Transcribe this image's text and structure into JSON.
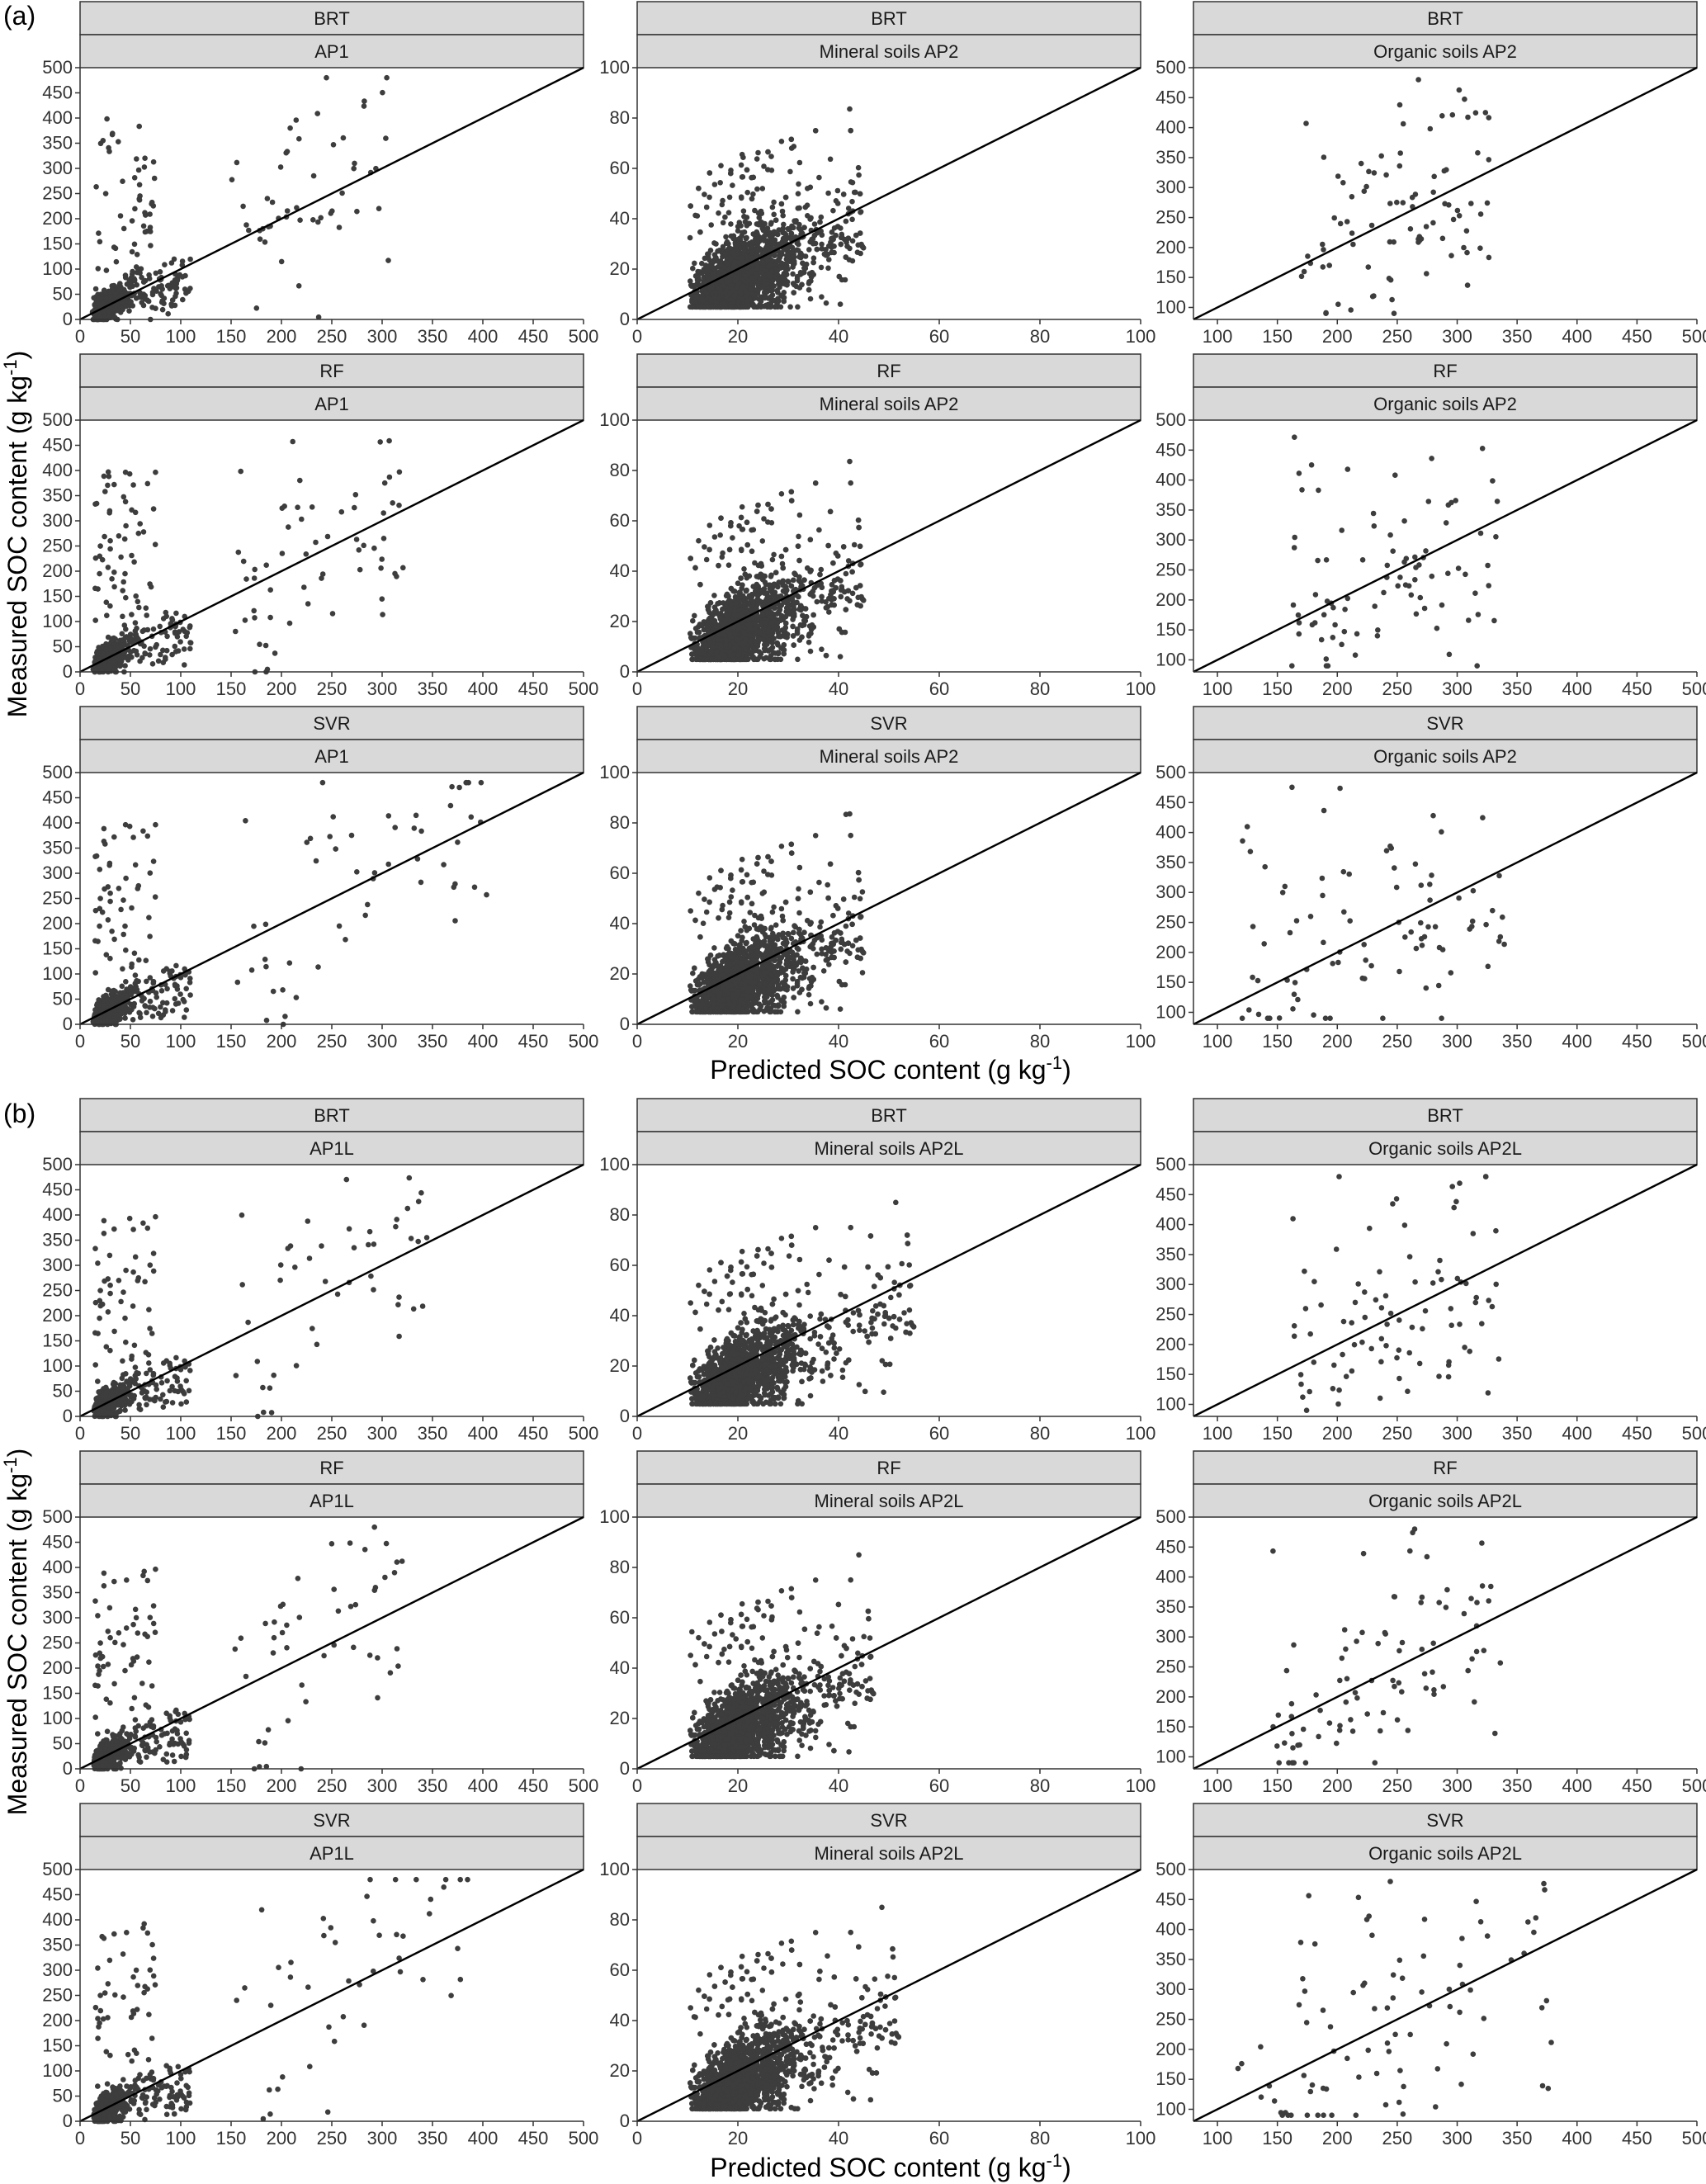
{
  "figure": {
    "x_title": "Predicted SOC content (g kg",
    "x_title_unit_exp": "-1",
    "x_title_close": ")",
    "y_title": "Measured SOC content (g kg",
    "y_title_unit_exp": "-1",
    "y_title_close": ")",
    "point_color": "#3d3d3d",
    "strip_color": "#d9d9d9"
  },
  "chart_data": [
    {
      "type": "scatter",
      "section": "(a)",
      "model": "BRT",
      "subset": "AP1",
      "xlim": [
        0,
        500
      ],
      "ylim": [
        0,
        500
      ],
      "xticks": [
        "0",
        "50",
        "100",
        "150",
        "200",
        "250",
        "300",
        "350",
        "400",
        "450",
        "500"
      ],
      "yticks": [
        "0",
        "50",
        "100",
        "150",
        "200",
        "250",
        "300",
        "350",
        "400",
        "450",
        "500"
      ],
      "reference_line": "1:1",
      "x_range_points": [
        12,
        310
      ],
      "y_range_points": [
        0,
        480
      ],
      "n_points_approx": 700
    },
    {
      "type": "scatter",
      "section": "(a)",
      "model": "BRT",
      "subset": "Mineral soils AP2",
      "xlim": [
        0,
        100
      ],
      "ylim": [
        0,
        100
      ],
      "xticks": [
        "0",
        "20",
        "40",
        "60",
        "80",
        "100"
      ],
      "yticks": [
        "0",
        "20",
        "40",
        "60",
        "80",
        "100"
      ],
      "reference_line": "1:1",
      "x_range_points": [
        8,
        45
      ],
      "y_range_points": [
        5,
        85
      ],
      "n_points_approx": 2500
    },
    {
      "type": "scatter",
      "section": "(a)",
      "model": "BRT",
      "subset": "Organic soils AP2",
      "xlim": [
        80,
        500
      ],
      "ylim": [
        80,
        500
      ],
      "xticks": [
        "100",
        "150",
        "200",
        "250",
        "300",
        "350",
        "400",
        "450",
        "500"
      ],
      "yticks": [
        "100",
        "150",
        "200",
        "250",
        "300",
        "350",
        "400",
        "450",
        "500"
      ],
      "reference_line": "1:1",
      "x_range_points": [
        170,
        330
      ],
      "y_range_points": [
        90,
        480
      ],
      "n_points_approx": 90
    },
    {
      "type": "scatter",
      "section": "(a)",
      "model": "RF",
      "subset": "AP1",
      "xlim": [
        0,
        500
      ],
      "ylim": [
        0,
        500
      ],
      "xticks": [
        "0",
        "50",
        "100",
        "150",
        "200",
        "250",
        "300",
        "350",
        "400",
        "450",
        "500"
      ],
      "yticks": [
        "0",
        "50",
        "100",
        "150",
        "200",
        "250",
        "300",
        "350",
        "400",
        "450",
        "500"
      ],
      "reference_line": "1:1",
      "x_range_points": [
        10,
        325
      ],
      "y_range_points": [
        0,
        480
      ],
      "n_points_approx": 700
    },
    {
      "type": "scatter",
      "section": "(a)",
      "model": "RF",
      "subset": "Mineral soils AP2",
      "xlim": [
        0,
        100
      ],
      "ylim": [
        0,
        100
      ],
      "xticks": [
        "0",
        "20",
        "40",
        "60",
        "80",
        "100"
      ],
      "yticks": [
        "0",
        "20",
        "40",
        "60",
        "80",
        "100"
      ],
      "reference_line": "1:1",
      "x_range_points": [
        8,
        45
      ],
      "y_range_points": [
        5,
        85
      ],
      "n_points_approx": 2500
    },
    {
      "type": "scatter",
      "section": "(a)",
      "model": "RF",
      "subset": "Organic soils AP2",
      "xlim": [
        80,
        500
      ],
      "ylim": [
        80,
        500
      ],
      "xticks": [
        "100",
        "150",
        "200",
        "250",
        "300",
        "350",
        "400",
        "450",
        "500"
      ],
      "yticks": [
        "100",
        "150",
        "200",
        "250",
        "300",
        "350",
        "400",
        "450",
        "500"
      ],
      "reference_line": "1:1",
      "x_range_points": [
        160,
        335
      ],
      "y_range_points": [
        90,
        480
      ],
      "n_points_approx": 90
    },
    {
      "type": "scatter",
      "section": "(a)",
      "model": "SVR",
      "subset": "AP1",
      "xlim": [
        0,
        500
      ],
      "ylim": [
        0,
        500
      ],
      "xticks": [
        "0",
        "50",
        "100",
        "150",
        "200",
        "250",
        "300",
        "350",
        "400",
        "450",
        "500"
      ],
      "yticks": [
        "0",
        "50",
        "100",
        "150",
        "200",
        "250",
        "300",
        "350",
        "400",
        "450",
        "500"
      ],
      "reference_line": "1:1",
      "x_range_points": [
        5,
        410
      ],
      "y_range_points": [
        0,
        480
      ],
      "n_points_approx": 700
    },
    {
      "type": "scatter",
      "section": "(a)",
      "model": "SVR",
      "subset": "Mineral soils AP2",
      "xlim": [
        0,
        100
      ],
      "ylim": [
        0,
        100
      ],
      "xticks": [
        "0",
        "20",
        "40",
        "60",
        "80",
        "100"
      ],
      "yticks": [
        "0",
        "20",
        "40",
        "60",
        "80",
        "100"
      ],
      "reference_line": "1:1",
      "x_range_points": [
        6,
        45
      ],
      "y_range_points": [
        5,
        85
      ],
      "n_points_approx": 2500
    },
    {
      "type": "scatter",
      "section": "(a)",
      "model": "SVR",
      "subset": "Organic soils AP2",
      "xlim": [
        80,
        500
      ],
      "ylim": [
        80,
        500
      ],
      "xticks": [
        "100",
        "150",
        "200",
        "250",
        "300",
        "350",
        "400",
        "450",
        "500"
      ],
      "yticks": [
        "100",
        "150",
        "200",
        "250",
        "300",
        "350",
        "400",
        "450",
        "500"
      ],
      "reference_line": "1:1",
      "x_range_points": [
        120,
        340
      ],
      "y_range_points": [
        90,
        480
      ],
      "n_points_approx": 90
    },
    {
      "type": "scatter",
      "section": "(b)",
      "model": "BRT",
      "subset": "AP1L",
      "xlim": [
        0,
        500
      ],
      "ylim": [
        0,
        500
      ],
      "xticks": [
        "0",
        "50",
        "100",
        "150",
        "200",
        "250",
        "300",
        "350",
        "400",
        "450",
        "500"
      ],
      "yticks": [
        "0",
        "50",
        "100",
        "150",
        "200",
        "250",
        "300",
        "350",
        "400",
        "450",
        "500"
      ],
      "reference_line": "1:1",
      "x_range_points": [
        12,
        345
      ],
      "y_range_points": [
        0,
        480
      ],
      "n_points_approx": 700
    },
    {
      "type": "scatter",
      "section": "(b)",
      "model": "BRT",
      "subset": "Mineral soils AP2L",
      "xlim": [
        0,
        100
      ],
      "ylim": [
        0,
        100
      ],
      "xticks": [
        "0",
        "20",
        "40",
        "60",
        "80",
        "100"
      ],
      "yticks": [
        "0",
        "20",
        "40",
        "60",
        "80",
        "100"
      ],
      "reference_line": "1:1",
      "x_range_points": [
        8,
        55
      ],
      "y_range_points": [
        5,
        85
      ],
      "n_points_approx": 2500
    },
    {
      "type": "scatter",
      "section": "(b)",
      "model": "BRT",
      "subset": "Organic soils AP2L",
      "xlim": [
        80,
        500
      ],
      "ylim": [
        80,
        500
      ],
      "xticks": [
        "100",
        "150",
        "200",
        "250",
        "300",
        "350",
        "400",
        "450",
        "500"
      ],
      "yticks": [
        "100",
        "150",
        "200",
        "250",
        "300",
        "350",
        "400",
        "450",
        "500"
      ],
      "reference_line": "1:1",
      "x_range_points": [
        160,
        335
      ],
      "y_range_points": [
        90,
        480
      ],
      "n_points_approx": 90
    },
    {
      "type": "scatter",
      "section": "(b)",
      "model": "RF",
      "subset": "AP1L",
      "xlim": [
        0,
        500
      ],
      "ylim": [
        0,
        500
      ],
      "xticks": [
        "0",
        "50",
        "100",
        "150",
        "200",
        "250",
        "300",
        "350",
        "400",
        "450",
        "500"
      ],
      "yticks": [
        "0",
        "50",
        "100",
        "150",
        "200",
        "250",
        "300",
        "350",
        "400",
        "450",
        "500"
      ],
      "reference_line": "1:1",
      "x_range_points": [
        10,
        320
      ],
      "y_range_points": [
        0,
        480
      ],
      "n_points_approx": 700
    },
    {
      "type": "scatter",
      "section": "(b)",
      "model": "RF",
      "subset": "Mineral soils AP2L",
      "xlim": [
        0,
        100
      ],
      "ylim": [
        0,
        100
      ],
      "xticks": [
        "0",
        "20",
        "40",
        "60",
        "80",
        "100"
      ],
      "yticks": [
        "0",
        "20",
        "40",
        "60",
        "80",
        "100"
      ],
      "reference_line": "1:1",
      "x_range_points": [
        8,
        47
      ],
      "y_range_points": [
        5,
        85
      ],
      "n_points_approx": 2500
    },
    {
      "type": "scatter",
      "section": "(b)",
      "model": "RF",
      "subset": "Organic soils AP2L",
      "xlim": [
        80,
        500
      ],
      "ylim": [
        80,
        500
      ],
      "xticks": [
        "100",
        "150",
        "200",
        "250",
        "300",
        "350",
        "400",
        "450",
        "500"
      ],
      "yticks": [
        "100",
        "150",
        "200",
        "250",
        "300",
        "350",
        "400",
        "450",
        "500"
      ],
      "reference_line": "1:1",
      "x_range_points": [
        145,
        340
      ],
      "y_range_points": [
        90,
        480
      ],
      "n_points_approx": 90
    },
    {
      "type": "scatter",
      "section": "(b)",
      "model": "SVR",
      "subset": "AP1L",
      "xlim": [
        0,
        500
      ],
      "ylim": [
        0,
        500
      ],
      "xticks": [
        "0",
        "50",
        "100",
        "150",
        "200",
        "250",
        "300",
        "350",
        "400",
        "450",
        "500"
      ],
      "yticks": [
        "0",
        "50",
        "100",
        "150",
        "200",
        "250",
        "300",
        "350",
        "400",
        "450",
        "500"
      ],
      "reference_line": "1:1",
      "x_range_points": [
        5,
        385
      ],
      "y_range_points": [
        0,
        480
      ],
      "n_points_approx": 700
    },
    {
      "type": "scatter",
      "section": "(b)",
      "model": "SVR",
      "subset": "Mineral soils AP2L",
      "xlim": [
        0,
        100
      ],
      "ylim": [
        0,
        100
      ],
      "xticks": [
        "0",
        "20",
        "40",
        "60",
        "80",
        "100"
      ],
      "yticks": [
        "0",
        "20",
        "40",
        "60",
        "80",
        "100"
      ],
      "reference_line": "1:1",
      "x_range_points": [
        6,
        52
      ],
      "y_range_points": [
        5,
        85
      ],
      "n_points_approx": 2500
    },
    {
      "type": "scatter",
      "section": "(b)",
      "model": "SVR",
      "subset": "Organic soils AP2L",
      "xlim": [
        80,
        500
      ],
      "ylim": [
        80,
        500
      ],
      "xticks": [
        "100",
        "150",
        "200",
        "250",
        "300",
        "350",
        "400",
        "450",
        "500"
      ],
      "yticks": [
        "100",
        "150",
        "200",
        "250",
        "300",
        "350",
        "400",
        "450",
        "500"
      ],
      "reference_line": "1:1",
      "x_range_points": [
        115,
        385
      ],
      "y_range_points": [
        90,
        480
      ],
      "n_points_approx": 90
    }
  ]
}
